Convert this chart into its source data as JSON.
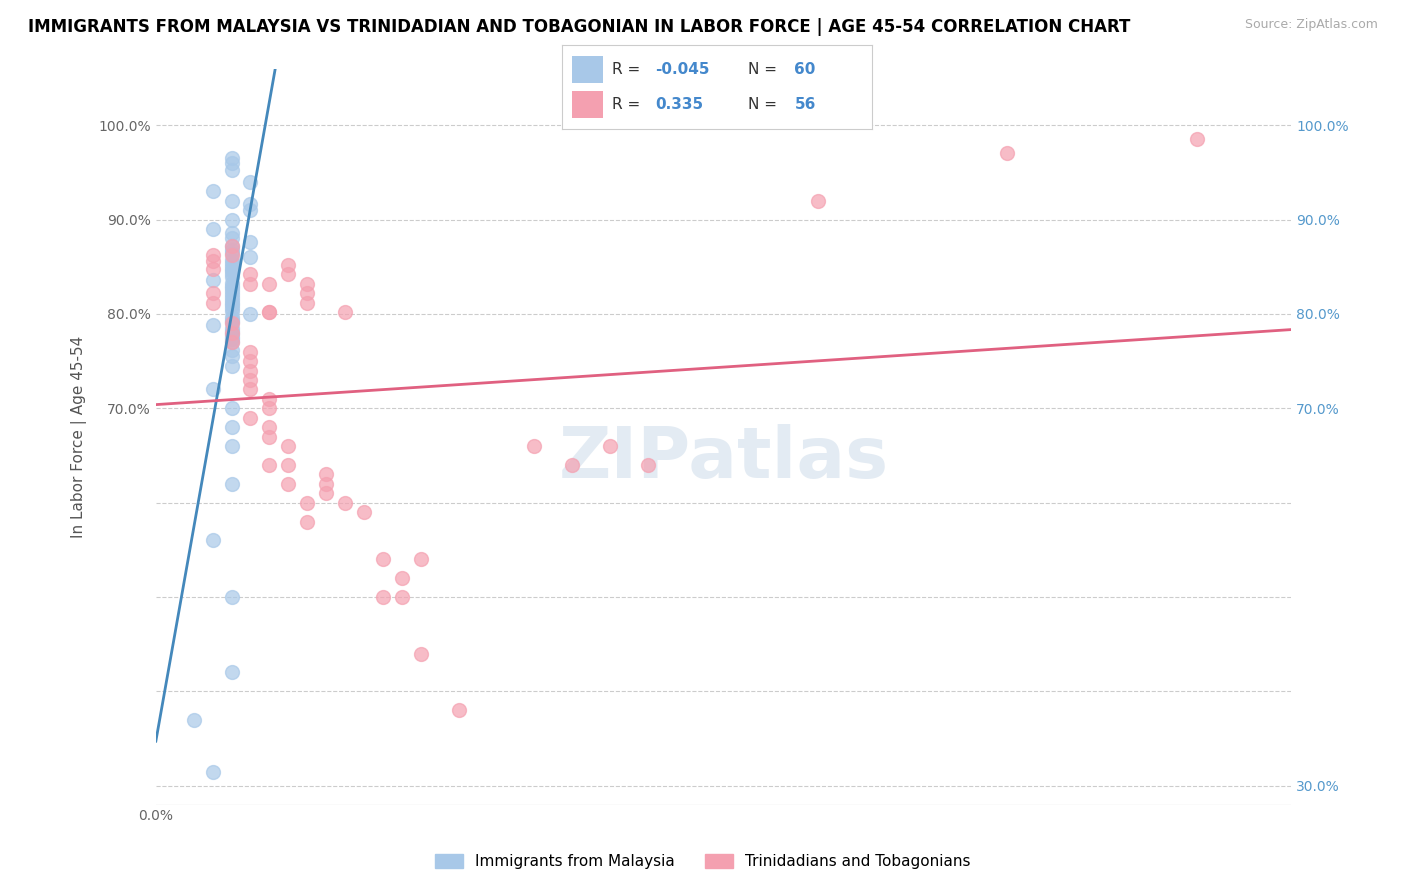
{
  "title": "IMMIGRANTS FROM MALAYSIA VS TRINIDADIAN AND TOBAGONIAN IN LABOR FORCE | AGE 45-54 CORRELATION CHART",
  "source": "Source: ZipAtlas.com",
  "ylabel": "In Labor Force | Age 45-54",
  "xlim": [
    0.0,
    0.006
  ],
  "ylim": [
    0.28,
    1.06
  ],
  "y_ticks": [
    0.3,
    0.4,
    0.5,
    0.6,
    0.7,
    0.8,
    0.9,
    1.0
  ],
  "legend_label1": "Immigrants from Malaysia",
  "legend_label2": "Trinidadians and Tobagonians",
  "color_blue": "#a8c8e8",
  "color_pink": "#f4a0b0",
  "color_blue_line": "#4488bb",
  "color_pink_line": "#e06080",
  "color_r_blue": "#4488cc",
  "color_r_pink": "#e06080",
  "color_tick_right": "#5599cc",
  "watermark": "ZIPatlas",
  "blue_scatter_x": [
    0.0004,
    0.0004,
    0.0004,
    0.0005,
    0.0003,
    0.0004,
    0.0005,
    0.0005,
    0.0004,
    0.0003,
    0.0004,
    0.0004,
    0.0005,
    0.0004,
    0.0004,
    0.0004,
    0.0005,
    0.0004,
    0.0004,
    0.0004,
    0.0004,
    0.0004,
    0.0004,
    0.0004,
    0.0003,
    0.0004,
    0.0004,
    0.0004,
    0.0004,
    0.0004,
    0.0004,
    0.0004,
    0.0004,
    0.0004,
    0.0004,
    0.0004,
    0.0005,
    0.0004,
    0.0004,
    0.0004,
    0.0003,
    0.0004,
    0.0004,
    0.0004,
    0.0004,
    0.0004,
    0.0004,
    0.0004,
    0.0004,
    0.0004,
    0.0003,
    0.0004,
    0.0004,
    0.0004,
    0.0004,
    0.0003,
    0.0004,
    0.0004,
    0.0002,
    0.0003
  ],
  "blue_scatter_y": [
    0.965,
    0.96,
    0.952,
    0.94,
    0.93,
    0.92,
    0.916,
    0.91,
    0.9,
    0.89,
    0.886,
    0.88,
    0.876,
    0.872,
    0.868,
    0.864,
    0.86,
    0.857,
    0.854,
    0.851,
    0.848,
    0.845,
    0.842,
    0.839,
    0.836,
    0.833,
    0.83,
    0.827,
    0.824,
    0.821,
    0.818,
    0.815,
    0.812,
    0.809,
    0.806,
    0.803,
    0.8,
    0.797,
    0.794,
    0.791,
    0.788,
    0.785,
    0.782,
    0.779,
    0.776,
    0.773,
    0.77,
    0.762,
    0.755,
    0.745,
    0.72,
    0.7,
    0.68,
    0.66,
    0.62,
    0.56,
    0.5,
    0.42,
    0.37,
    0.315
  ],
  "pink_scatter_x": [
    0.0003,
    0.0008,
    0.0006,
    0.0005,
    0.0008,
    0.0007,
    0.0003,
    0.0003,
    0.0008,
    0.001,
    0.0004,
    0.0004,
    0.0007,
    0.0005,
    0.0006,
    0.0003,
    0.0003,
    0.0006,
    0.0004,
    0.0004,
    0.0004,
    0.0005,
    0.0005,
    0.0005,
    0.0005,
    0.0005,
    0.0006,
    0.0006,
    0.0005,
    0.0006,
    0.0006,
    0.0007,
    0.0006,
    0.0007,
    0.0008,
    0.0008,
    0.0007,
    0.0009,
    0.0009,
    0.0009,
    0.001,
    0.0011,
    0.0012,
    0.0013,
    0.0014,
    0.0012,
    0.0013,
    0.0014,
    0.0016,
    0.002,
    0.0022,
    0.0024,
    0.0026,
    0.0035,
    0.0045,
    0.0055
  ],
  "pink_scatter_y": [
    0.862,
    0.832,
    0.802,
    0.832,
    0.822,
    0.842,
    0.856,
    0.848,
    0.812,
    0.802,
    0.872,
    0.862,
    0.852,
    0.842,
    0.832,
    0.822,
    0.812,
    0.802,
    0.79,
    0.78,
    0.77,
    0.76,
    0.75,
    0.74,
    0.73,
    0.72,
    0.71,
    0.7,
    0.69,
    0.68,
    0.67,
    0.66,
    0.64,
    0.62,
    0.6,
    0.58,
    0.64,
    0.63,
    0.62,
    0.61,
    0.6,
    0.59,
    0.54,
    0.5,
    0.54,
    0.5,
    0.52,
    0.44,
    0.38,
    0.66,
    0.64,
    0.66,
    0.64,
    0.92,
    0.97,
    0.985
  ],
  "title_fontsize": 12,
  "source_fontsize": 9,
  "axis_label_fontsize": 11,
  "tick_fontsize": 10
}
